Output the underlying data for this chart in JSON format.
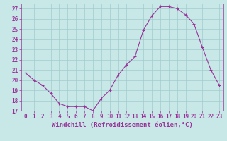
{
  "x": [
    0,
    1,
    2,
    3,
    4,
    5,
    6,
    7,
    8,
    9,
    10,
    11,
    12,
    13,
    14,
    15,
    16,
    17,
    18,
    19,
    20,
    21,
    22,
    23
  ],
  "y": [
    20.7,
    20.0,
    19.5,
    18.7,
    17.7,
    17.4,
    17.4,
    17.4,
    17.0,
    18.2,
    19.0,
    20.5,
    21.5,
    22.3,
    24.9,
    26.3,
    27.2,
    27.2,
    27.0,
    26.4,
    25.5,
    23.2,
    21.0,
    19.5
  ],
  "line_color": "#993399",
  "marker": "+",
  "bg_color": "#c8e8e8",
  "grid_color": "#a0cccc",
  "axis_color": "#993399",
  "xlabel": "Windchill (Refroidissement éolien,°C)",
  "ylim": [
    17,
    27.5
  ],
  "xlim": [
    -0.5,
    23.5
  ],
  "yticks": [
    17,
    18,
    19,
    20,
    21,
    22,
    23,
    24,
    25,
    26,
    27
  ],
  "xticks": [
    0,
    1,
    2,
    3,
    4,
    5,
    6,
    7,
    8,
    9,
    10,
    11,
    12,
    13,
    14,
    15,
    16,
    17,
    18,
    19,
    20,
    21,
    22,
    23
  ],
  "tick_fontsize": 5.5,
  "label_fontsize": 6.5
}
